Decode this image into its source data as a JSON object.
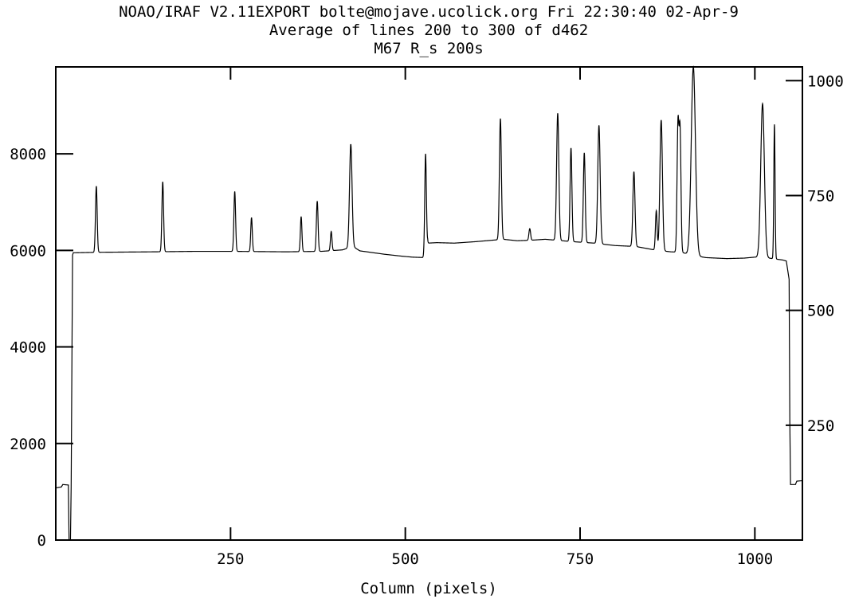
{
  "header": {
    "line1": "NOAO/IRAF V2.11EXPORT bolte@mojave.ucolick.org Fri 22:30:40 02-Apr-9",
    "line2": "Average of lines 200 to 300 of d462",
    "line3": "M67 R_s 200s"
  },
  "chart_data": {
    "type": "line",
    "xlabel": "Column (pixels)",
    "ylabel": "",
    "xlim": [
      0,
      1068
    ],
    "ylim": [
      0,
      9800
    ],
    "y2lim": [
      0,
      1030
    ],
    "grid": false,
    "x_ticks": [
      250,
      500,
      750,
      1000
    ],
    "x_tick_labels": [
      "250",
      "500",
      "750",
      "1000"
    ],
    "y_ticks": [
      0,
      2000,
      4000,
      6000,
      8000
    ],
    "y_tick_labels": [
      "0",
      "2000",
      "4000",
      "6000",
      "8000"
    ],
    "y2_ticks": [
      250,
      500,
      750,
      1000
    ],
    "y2_tick_labels": [
      "250",
      "500",
      "750",
      "1000"
    ],
    "series": [
      {
        "baseline": [
          [
            0,
            1080
          ],
          [
            8,
            1100
          ],
          [
            10,
            1150
          ],
          [
            18,
            1140
          ],
          [
            19,
            0
          ],
          [
            21,
            0
          ],
          [
            22,
            1100
          ],
          [
            24,
            5900
          ],
          [
            25,
            5950
          ],
          [
            60,
            5960
          ],
          [
            140,
            5970
          ],
          [
            200,
            5980
          ],
          [
            250,
            5980
          ],
          [
            330,
            5970
          ],
          [
            380,
            5980
          ],
          [
            410,
            6010
          ],
          [
            425,
            6080
          ],
          [
            435,
            5990
          ],
          [
            450,
            5960
          ],
          [
            470,
            5920
          ],
          [
            495,
            5880
          ],
          [
            510,
            5860
          ],
          [
            529,
            5850
          ],
          [
            530,
            5800
          ],
          [
            532,
            6150
          ],
          [
            545,
            6160
          ],
          [
            570,
            6150
          ],
          [
            600,
            6180
          ],
          [
            640,
            6230
          ],
          [
            660,
            6200
          ],
          [
            680,
            6210
          ],
          [
            700,
            6230
          ],
          [
            740,
            6180
          ],
          [
            770,
            6150
          ],
          [
            800,
            6100
          ],
          [
            830,
            6080
          ],
          [
            860,
            6000
          ],
          [
            880,
            5970
          ],
          [
            895,
            5960
          ],
          [
            910,
            5900
          ],
          [
            930,
            5850
          ],
          [
            960,
            5830
          ],
          [
            985,
            5840
          ],
          [
            1000,
            5860
          ],
          [
            1010,
            5850
          ],
          [
            1020,
            5840
          ],
          [
            1030,
            5820
          ],
          [
            1040,
            5800
          ],
          [
            1045,
            5780
          ],
          [
            1049,
            5400
          ],
          [
            1050,
            2500
          ],
          [
            1051,
            1150
          ],
          [
            1058,
            1150
          ],
          [
            1060,
            1220
          ],
          [
            1068,
            1230
          ]
        ],
        "peaks": [
          [
            58,
            7330,
            1.2
          ],
          [
            153,
            7420,
            1.2
          ],
          [
            256,
            7220,
            1.2
          ],
          [
            280,
            6680,
            1.1
          ],
          [
            351,
            6700,
            1.1
          ],
          [
            374,
            7020,
            1.2
          ],
          [
            394,
            6390,
            1.1
          ],
          [
            422,
            8200,
            1.8
          ],
          [
            529,
            8000,
            1.2
          ],
          [
            636,
            8730,
            1.4
          ],
          [
            678,
            6450,
            1.2
          ],
          [
            718,
            8840,
            1.6
          ],
          [
            737,
            8120,
            1.3
          ],
          [
            756,
            8020,
            1.3
          ],
          [
            777,
            8590,
            1.7
          ],
          [
            827,
            7630,
            1.5
          ],
          [
            859,
            6820,
            1.2
          ],
          [
            866,
            8700,
            1.8
          ],
          [
            890,
            8580,
            1.3
          ],
          [
            893,
            8450,
            1.3
          ],
          [
            912,
            9800,
            3.0
          ],
          [
            1011,
            9040,
            2.6
          ],
          [
            1028,
            8610,
            0.9
          ]
        ]
      }
    ]
  }
}
